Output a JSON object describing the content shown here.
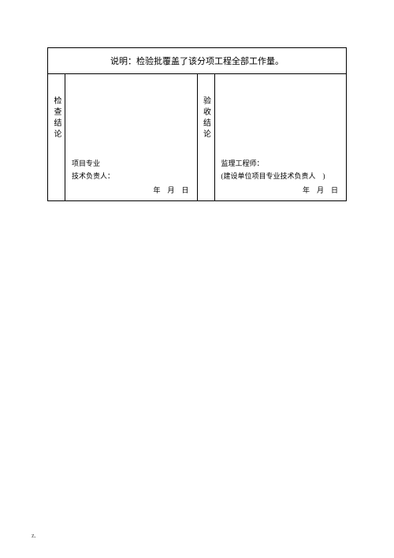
{
  "header": {
    "text": "说明：检验批覆盖了该分项工程全部工作量。"
  },
  "left_section": {
    "vertical_label": "检查结论",
    "signer_line1": "项目专业",
    "signer_line2": "技术负责人：",
    "date": "年　月　日"
  },
  "right_section": {
    "vertical_label": "验收结论",
    "signer_line1": "监理工程师：",
    "signer_line2": "(建设单位项目专业技术负责人　)",
    "date": "年　月　日"
  },
  "footer": {
    "mark": "z."
  },
  "style": {
    "page_background": "#ffffff",
    "border_color": "#000000",
    "text_color": "#000000",
    "header_fontsize": 11,
    "body_fontsize": 9,
    "vlabel_fontsize": 10
  }
}
